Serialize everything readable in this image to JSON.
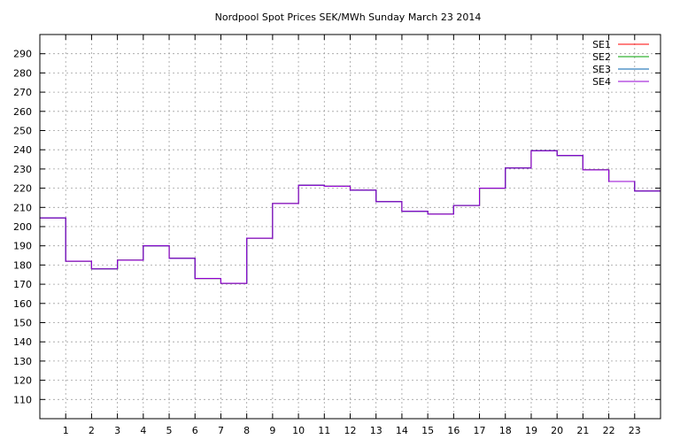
{
  "chart_data": {
    "type": "line",
    "title": "Nordpool Spot Prices SEK/MWh Sunday March 23 2014",
    "xlabel": "",
    "ylabel": "",
    "step": true,
    "grid": true,
    "legend_position": "top-right",
    "xlim": [
      0,
      24
    ],
    "ylim": [
      100,
      300
    ],
    "x_ticks": [
      1,
      2,
      3,
      4,
      5,
      6,
      7,
      8,
      9,
      10,
      11,
      12,
      13,
      14,
      15,
      16,
      17,
      18,
      19,
      20,
      21,
      22,
      23
    ],
    "y_ticks": [
      110,
      120,
      130,
      140,
      150,
      160,
      170,
      180,
      190,
      200,
      210,
      220,
      230,
      240,
      250,
      260,
      270,
      280,
      290
    ],
    "hours": [
      0,
      1,
      2,
      3,
      4,
      5,
      6,
      7,
      8,
      9,
      10,
      11,
      12,
      13,
      14,
      15,
      16,
      17,
      18,
      19,
      20,
      21,
      22,
      23
    ],
    "series": [
      {
        "name": "SE1",
        "color": "#ff0000",
        "values": [
          204.5,
          182.0,
          178.0,
          182.5,
          190.0,
          183.5,
          173.0,
          170.5,
          194.0,
          212.0,
          221.5,
          221.0,
          219.0,
          213.0,
          208.0,
          206.5,
          211.0,
          220.0,
          230.5,
          239.5,
          237.0,
          229.5,
          223.5,
          218.5
        ]
      },
      {
        "name": "SE2",
        "color": "#00a000",
        "values": [
          204.5,
          182.0,
          178.0,
          182.5,
          190.0,
          183.5,
          173.0,
          170.5,
          194.0,
          212.0,
          221.5,
          221.0,
          219.0,
          213.0,
          208.0,
          206.5,
          211.0,
          220.0,
          230.5,
          239.5,
          237.0,
          229.5,
          223.5,
          218.5
        ]
      },
      {
        "name": "SE3",
        "color": "#0060ad",
        "values": [
          204.5,
          182.0,
          178.0,
          182.5,
          190.0,
          183.5,
          173.0,
          170.5,
          194.0,
          212.0,
          221.5,
          221.0,
          219.0,
          213.0,
          208.0,
          206.5,
          211.0,
          220.0,
          230.5,
          239.5,
          237.0,
          229.5,
          223.5,
          218.5
        ]
      },
      {
        "name": "SE4",
        "color": "#9400d3",
        "values": [
          204.5,
          182.0,
          178.0,
          182.5,
          190.0,
          183.5,
          173.0,
          170.5,
          194.0,
          212.0,
          221.5,
          221.0,
          219.0,
          213.0,
          208.0,
          206.5,
          211.0,
          220.0,
          230.5,
          239.5,
          237.0,
          229.5,
          223.5,
          218.5
        ]
      }
    ]
  }
}
